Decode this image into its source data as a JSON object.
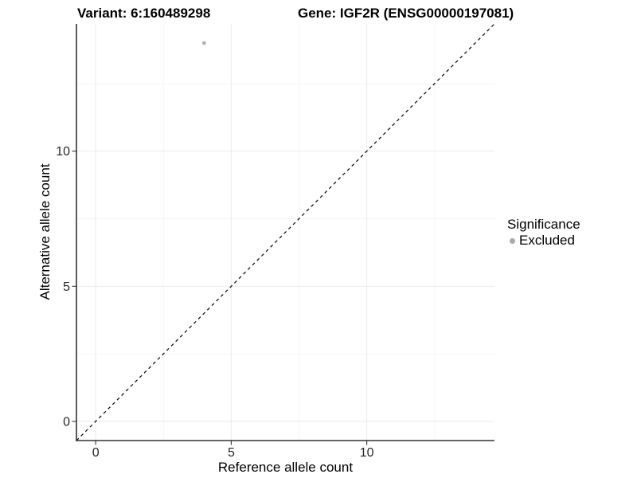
{
  "chart_data": {
    "type": "scatter",
    "title_left": "Variant: 6:160489298",
    "title_right": "Gene: IGF2R (ENSG00000197081)",
    "xlabel": "Reference allele count",
    "ylabel": "Alternative allele count",
    "xlim": [
      -0.71,
      14.71
    ],
    "ylim": [
      -0.71,
      14.71
    ],
    "x_major_ticks": [
      0,
      5,
      10
    ],
    "y_major_ticks": [
      0,
      5,
      10
    ],
    "x_minor_ticks": [
      2.5,
      7.5,
      12.5
    ],
    "y_minor_ticks": [
      2.5,
      7.5,
      12.5
    ],
    "grid": "major+minor",
    "reference_line": {
      "type": "identity y=x",
      "style": "dashed",
      "color": "#000000"
    },
    "series": [
      {
        "name": "Excluded",
        "marker": "circle",
        "color": "#b3b3b3",
        "points": [
          {
            "x": 4,
            "y": 14
          }
        ]
      }
    ],
    "legend": {
      "title": "Significance",
      "position": "right",
      "items": [
        {
          "label": "Excluded",
          "marker": "circle",
          "color": "#a9a9a9"
        }
      ]
    }
  },
  "colors": {
    "background": "#ffffff",
    "axis_line": "#333333",
    "tick_mark": "#333333",
    "tick_label": "#262626",
    "grid_major": "#ebebeb",
    "grid_minor": "#f5f5f5",
    "reference_line": "#000000",
    "point": "#b3b3b3",
    "legend_marker": "#a9a9a9"
  }
}
